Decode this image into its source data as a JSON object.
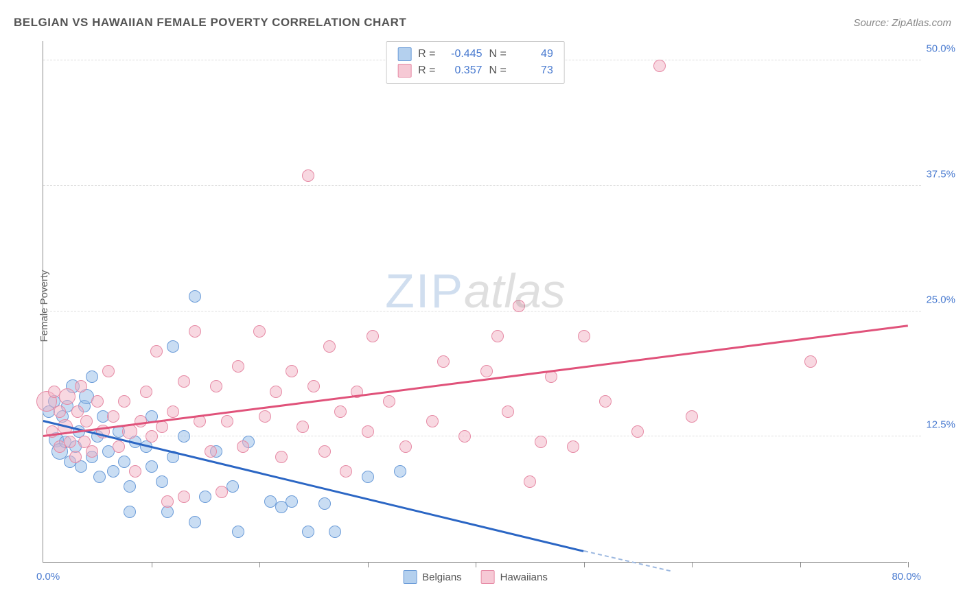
{
  "header": {
    "title": "BELGIAN VS HAWAIIAN FEMALE POVERTY CORRELATION CHART",
    "source": "Source: ZipAtlas.com"
  },
  "y_axis": {
    "label": "Female Poverty"
  },
  "watermark": {
    "zip": "ZIP",
    "atlas": "atlas"
  },
  "chart": {
    "type": "scatter",
    "xlim": [
      0,
      80
    ],
    "ylim": [
      0,
      52
    ],
    "x_ticks": [
      0,
      10,
      20,
      30,
      40,
      50,
      60,
      70,
      80
    ],
    "y_gridlines": [
      12.5,
      25.0,
      37.5,
      50.0
    ],
    "y_tick_labels": [
      "12.5%",
      "25.0%",
      "37.5%",
      "50.0%"
    ],
    "x_min_label": "0.0%",
    "x_max_label": "80.0%",
    "background_color": "#ffffff",
    "grid_color": "#dddddd",
    "axis_color": "#888888",
    "point_radius_default": 9,
    "colors": {
      "blue_fill": "rgba(148,188,231,0.5)",
      "blue_stroke": "#6a9bd8",
      "blue_line": "#2b66c4",
      "pink_fill": "rgba(242,178,195,0.5)",
      "pink_stroke": "#e68aa5",
      "pink_line": "#e0527a",
      "tick_label": "#4a7bd0"
    },
    "series": [
      {
        "name": "Belgians",
        "color": "blue",
        "R": "-0.445",
        "N": "49",
        "trend": {
          "x1": 0,
          "y1": 14.0,
          "x2": 50,
          "y2": 1.0,
          "dashed_x2": 58,
          "dashed_y2": -1.0
        },
        "points": [
          {
            "x": 0.5,
            "y": 15.0,
            "r": 9
          },
          {
            "x": 1.0,
            "y": 16.0,
            "r": 9
          },
          {
            "x": 1.2,
            "y": 12.2,
            "r": 11
          },
          {
            "x": 1.5,
            "y": 11.0,
            "r": 12
          },
          {
            "x": 1.8,
            "y": 14.5,
            "r": 9
          },
          {
            "x": 2.0,
            "y": 12.0,
            "r": 9
          },
          {
            "x": 2.2,
            "y": 15.5,
            "r": 9
          },
          {
            "x": 2.5,
            "y": 10.0,
            "r": 9
          },
          {
            "x": 2.7,
            "y": 17.5,
            "r": 10
          },
          {
            "x": 3.0,
            "y": 11.5,
            "r": 9
          },
          {
            "x": 3.3,
            "y": 13.0,
            "r": 9
          },
          {
            "x": 3.5,
            "y": 9.5,
            "r": 9
          },
          {
            "x": 3.8,
            "y": 15.5,
            "r": 9
          },
          {
            "x": 4.0,
            "y": 16.5,
            "r": 11
          },
          {
            "x": 4.5,
            "y": 10.5,
            "r": 9
          },
          {
            "x": 4.5,
            "y": 18.5,
            "r": 9
          },
          {
            "x": 5.0,
            "y": 12.5,
            "r": 9
          },
          {
            "x": 5.2,
            "y": 8.5,
            "r": 9
          },
          {
            "x": 5.5,
            "y": 14.5,
            "r": 9
          },
          {
            "x": 6.0,
            "y": 11.0,
            "r": 9
          },
          {
            "x": 6.5,
            "y": 9.0,
            "r": 9
          },
          {
            "x": 7.0,
            "y": 13.0,
            "r": 9
          },
          {
            "x": 7.5,
            "y": 10.0,
            "r": 9
          },
          {
            "x": 8.0,
            "y": 7.5,
            "r": 9
          },
          {
            "x": 8.5,
            "y": 12.0,
            "r": 9
          },
          {
            "x": 8.0,
            "y": 5.0,
            "r": 9
          },
          {
            "x": 9.5,
            "y": 11.5,
            "r": 9
          },
          {
            "x": 10.0,
            "y": 9.5,
            "r": 9
          },
          {
            "x": 10.0,
            "y": 14.5,
            "r": 9
          },
          {
            "x": 11.0,
            "y": 8.0,
            "r": 9
          },
          {
            "x": 11.5,
            "y": 5.0,
            "r": 9
          },
          {
            "x": 12.0,
            "y": 21.5,
            "r": 9
          },
          {
            "x": 12.0,
            "y": 10.5,
            "r": 9
          },
          {
            "x": 13.0,
            "y": 12.5,
            "r": 9
          },
          {
            "x": 14.0,
            "y": 4.0,
            "r": 9
          },
          {
            "x": 14.0,
            "y": 26.5,
            "r": 9
          },
          {
            "x": 15.0,
            "y": 6.5,
            "r": 9
          },
          {
            "x": 16.0,
            "y": 11.0,
            "r": 9
          },
          {
            "x": 17.5,
            "y": 7.5,
            "r": 9
          },
          {
            "x": 18.0,
            "y": 3.0,
            "r": 9
          },
          {
            "x": 19.0,
            "y": 12.0,
            "r": 9
          },
          {
            "x": 21.0,
            "y": 6.0,
            "r": 9
          },
          {
            "x": 22.0,
            "y": 5.5,
            "r": 9
          },
          {
            "x": 23.0,
            "y": 6.0,
            "r": 9
          },
          {
            "x": 24.5,
            "y": 3.0,
            "r": 9
          },
          {
            "x": 26.0,
            "y": 5.8,
            "r": 9
          },
          {
            "x": 27.0,
            "y": 3.0,
            "r": 9
          },
          {
            "x": 30.0,
            "y": 8.5,
            "r": 9
          },
          {
            "x": 33.0,
            "y": 9.0,
            "r": 9
          }
        ]
      },
      {
        "name": "Hawaiians",
        "color": "pink",
        "R": "0.357",
        "N": "73",
        "trend": {
          "x1": 0,
          "y1": 12.5,
          "x2": 80,
          "y2": 23.5
        },
        "points": [
          {
            "x": 0.3,
            "y": 16.0,
            "r": 15
          },
          {
            "x": 0.8,
            "y": 13.0,
            "r": 9
          },
          {
            "x": 1.0,
            "y": 17.0,
            "r": 9
          },
          {
            "x": 1.5,
            "y": 15.0,
            "r": 9
          },
          {
            "x": 1.5,
            "y": 11.5,
            "r": 9
          },
          {
            "x": 2.0,
            "y": 13.5,
            "r": 11
          },
          {
            "x": 2.2,
            "y": 16.5,
            "r": 12
          },
          {
            "x": 2.5,
            "y": 12.0,
            "r": 9
          },
          {
            "x": 3.0,
            "y": 10.5,
            "r": 9
          },
          {
            "x": 3.2,
            "y": 15.0,
            "r": 9
          },
          {
            "x": 3.5,
            "y": 17.5,
            "r": 9
          },
          {
            "x": 3.8,
            "y": 12.0,
            "r": 9
          },
          {
            "x": 4.0,
            "y": 14.0,
            "r": 9
          },
          {
            "x": 4.5,
            "y": 11.0,
            "r": 9
          },
          {
            "x": 5.0,
            "y": 16.0,
            "r": 9
          },
          {
            "x": 5.5,
            "y": 13.0,
            "r": 10
          },
          {
            "x": 6.0,
            "y": 19.0,
            "r": 9
          },
          {
            "x": 6.5,
            "y": 14.5,
            "r": 9
          },
          {
            "x": 7.0,
            "y": 11.5,
            "r": 9
          },
          {
            "x": 7.5,
            "y": 16.0,
            "r": 9
          },
          {
            "x": 8.0,
            "y": 13.0,
            "r": 11
          },
          {
            "x": 8.5,
            "y": 9.0,
            "r": 9
          },
          {
            "x": 9.0,
            "y": 14.0,
            "r": 9
          },
          {
            "x": 9.5,
            "y": 17.0,
            "r": 9
          },
          {
            "x": 10.0,
            "y": 12.5,
            "r": 9
          },
          {
            "x": 10.5,
            "y": 21.0,
            "r": 9
          },
          {
            "x": 11.0,
            "y": 13.5,
            "r": 9
          },
          {
            "x": 11.5,
            "y": 6.0,
            "r": 9
          },
          {
            "x": 12.0,
            "y": 15.0,
            "r": 9
          },
          {
            "x": 13.0,
            "y": 18.0,
            "r": 9
          },
          {
            "x": 13.0,
            "y": 6.5,
            "r": 9
          },
          {
            "x": 14.0,
            "y": 23.0,
            "r": 9
          },
          {
            "x": 14.5,
            "y": 14.0,
            "r": 9
          },
          {
            "x": 15.5,
            "y": 11.0,
            "r": 9
          },
          {
            "x": 16.0,
            "y": 17.5,
            "r": 9
          },
          {
            "x": 16.5,
            "y": 7.0,
            "r": 9
          },
          {
            "x": 17.0,
            "y": 14.0,
            "r": 9
          },
          {
            "x": 18.0,
            "y": 19.5,
            "r": 9
          },
          {
            "x": 18.5,
            "y": 11.5,
            "r": 9
          },
          {
            "x": 20.0,
            "y": 23.0,
            "r": 9
          },
          {
            "x": 20.5,
            "y": 14.5,
            "r": 9
          },
          {
            "x": 21.5,
            "y": 17.0,
            "r": 9
          },
          {
            "x": 22.0,
            "y": 10.5,
            "r": 9
          },
          {
            "x": 23.0,
            "y": 19.0,
            "r": 9
          },
          {
            "x": 24.0,
            "y": 13.5,
            "r": 9
          },
          {
            "x": 24.5,
            "y": 38.5,
            "r": 9
          },
          {
            "x": 25.0,
            "y": 17.5,
            "r": 9
          },
          {
            "x": 26.0,
            "y": 11.0,
            "r": 9
          },
          {
            "x": 26.5,
            "y": 21.5,
            "r": 9
          },
          {
            "x": 27.5,
            "y": 15.0,
            "r": 9
          },
          {
            "x": 28.0,
            "y": 9.0,
            "r": 9
          },
          {
            "x": 29.0,
            "y": 17.0,
            "r": 9
          },
          {
            "x": 30.0,
            "y": 13.0,
            "r": 9
          },
          {
            "x": 30.5,
            "y": 22.5,
            "r": 9
          },
          {
            "x": 32.0,
            "y": 16.0,
            "r": 9
          },
          {
            "x": 33.5,
            "y": 11.5,
            "r": 9
          },
          {
            "x": 36.0,
            "y": 14.0,
            "r": 9
          },
          {
            "x": 37.0,
            "y": 20.0,
            "r": 9
          },
          {
            "x": 39.0,
            "y": 12.5,
            "r": 9
          },
          {
            "x": 41.0,
            "y": 19.0,
            "r": 9
          },
          {
            "x": 42.0,
            "y": 22.5,
            "r": 9
          },
          {
            "x": 43.0,
            "y": 15.0,
            "r": 9
          },
          {
            "x": 44.0,
            "y": 25.5,
            "r": 9
          },
          {
            "x": 45.0,
            "y": 8.0,
            "r": 9
          },
          {
            "x": 46.0,
            "y": 12.0,
            "r": 9
          },
          {
            "x": 47.0,
            "y": 18.5,
            "r": 9
          },
          {
            "x": 49.0,
            "y": 11.5,
            "r": 9
          },
          {
            "x": 50.0,
            "y": 22.5,
            "r": 9
          },
          {
            "x": 52.0,
            "y": 16.0,
            "r": 9
          },
          {
            "x": 55.0,
            "y": 13.0,
            "r": 9
          },
          {
            "x": 57.0,
            "y": 49.5,
            "r": 9
          },
          {
            "x": 60.0,
            "y": 14.5,
            "r": 9
          },
          {
            "x": 71.0,
            "y": 20.0,
            "r": 9
          }
        ]
      }
    ],
    "legend_top": {
      "R_label": "R =",
      "N_label": "N ="
    },
    "legend_bottom": [
      {
        "label": "Belgians",
        "color": "blue"
      },
      {
        "label": "Hawaiians",
        "color": "pink"
      }
    ]
  }
}
